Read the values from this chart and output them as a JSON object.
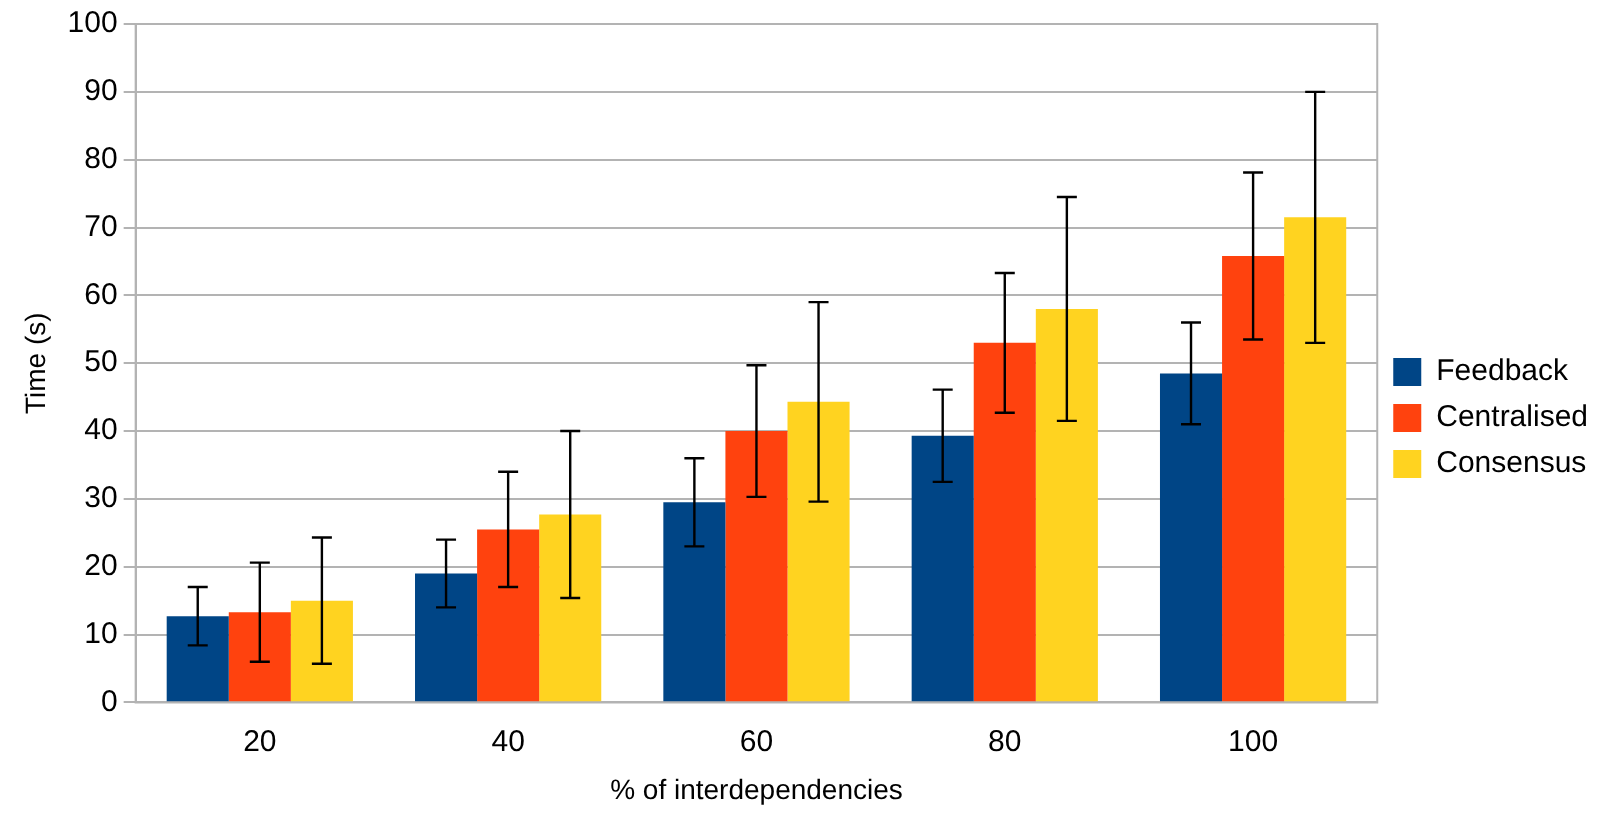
{
  "chart_data": {
    "type": "bar",
    "xlabel": "% of interdependencies",
    "ylabel": "Time (s)",
    "categories": [
      "20",
      "40",
      "60",
      "80",
      "100"
    ],
    "series": [
      {
        "name": "Feedback",
        "color": "#004586",
        "values": [
          12.7,
          19,
          29.5,
          39.3,
          48.5
        ],
        "errors": [
          4.3,
          5,
          6.5,
          6.8,
          7.5
        ]
      },
      {
        "name": "Centralised",
        "color": "#ff420e",
        "values": [
          13.3,
          25.5,
          40,
          53,
          65.8
        ],
        "errors": [
          7.3,
          8.5,
          9.7,
          10.3,
          12.3
        ]
      },
      {
        "name": "Consensus",
        "color": "#ffd320",
        "values": [
          15,
          27.7,
          44.3,
          58,
          71.5
        ],
        "errors": [
          9.3,
          12.3,
          14.7,
          16.5,
          18.5
        ]
      }
    ],
    "ylim": [
      0,
      100
    ],
    "yticks": [
      0,
      10,
      20,
      30,
      40,
      50,
      60,
      70,
      80,
      90,
      100
    ],
    "grid": "y",
    "legend": "right"
  }
}
